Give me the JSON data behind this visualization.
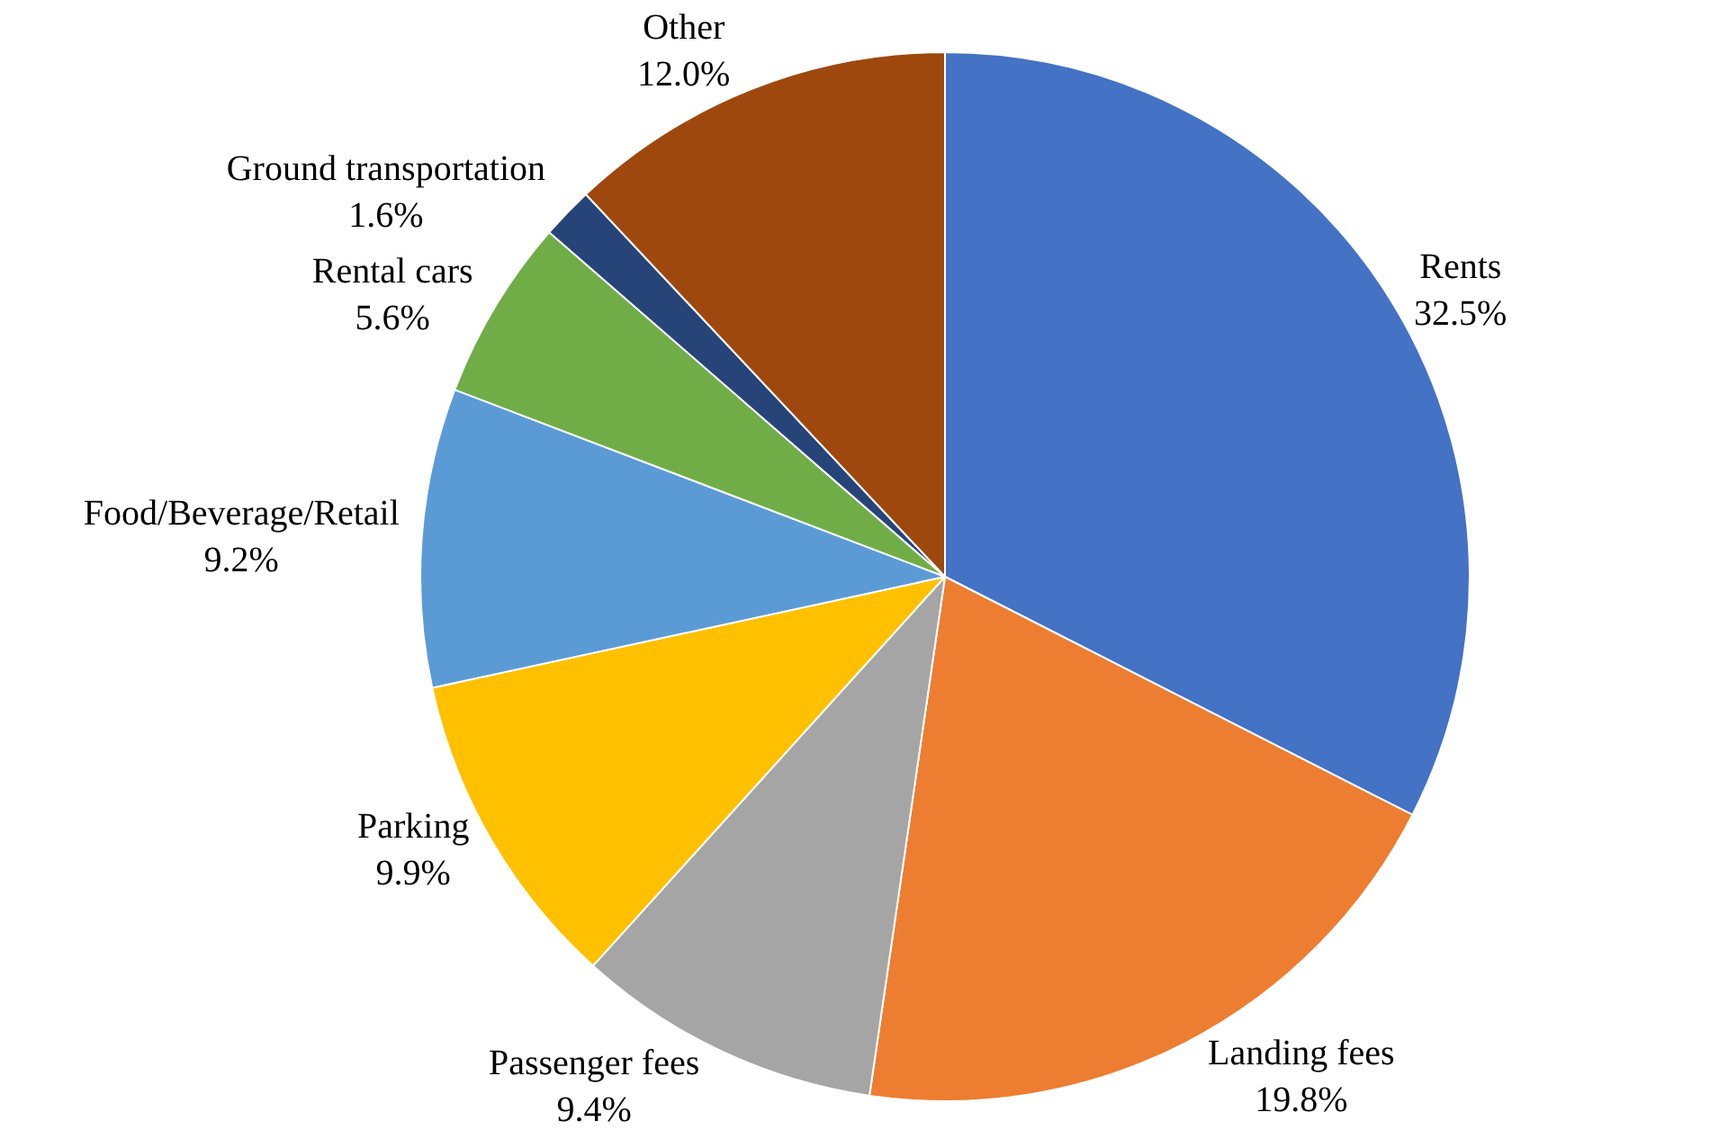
{
  "chart_data": {
    "type": "pie",
    "categories": [
      "Rents",
      "Landing fees",
      "Passenger fees",
      "Parking",
      "Food/Beverage/Retail",
      "Rental cars",
      "Ground transportation",
      "Other"
    ],
    "values": [
      32.5,
      19.8,
      9.4,
      9.9,
      9.2,
      5.6,
      1.6,
      12.0
    ],
    "value_labels": [
      "32.5%",
      "19.8%",
      "9.4%",
      "9.9%",
      "9.2%",
      "5.6%",
      "1.6%",
      "12.0%"
    ],
    "colors": [
      "#4472c4",
      "#ed7d31",
      "#a5a5a5",
      "#ffc000",
      "#5b9bd5",
      "#70ad47",
      "#264478",
      "#9e480e"
    ],
    "legend": false
  }
}
